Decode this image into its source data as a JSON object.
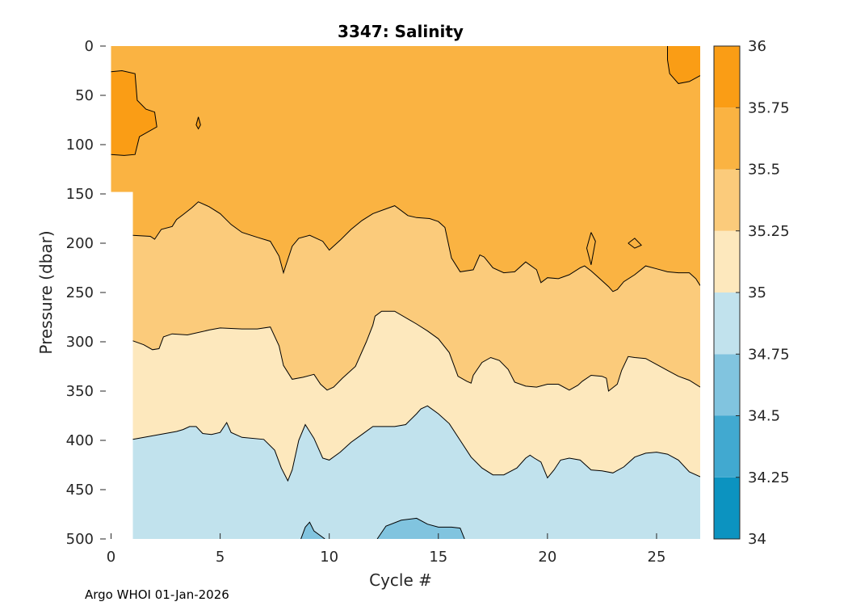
{
  "chart_data": {
    "type": "contour",
    "title": "3347:  Salinity",
    "xlabel": "Cycle #",
    "ylabel": "Pressure (dbar)",
    "xlim": [
      -0.5,
      27
    ],
    "ylim": [
      500,
      0
    ],
    "xticks": [
      0,
      5,
      10,
      15,
      20,
      25
    ],
    "yticks": [
      0,
      50,
      100,
      150,
      200,
      250,
      300,
      350,
      400,
      450,
      500
    ],
    "footer": "Argo WHOI 01-Jan-2026",
    "colorbar": {
      "range": [
        34,
        36
      ],
      "ticks": [
        "34",
        "34.25",
        "34.5",
        "34.75",
        "35",
        "35.25",
        "35.5",
        "35.75",
        "36"
      ],
      "bands": [
        {
          "low": 34.0,
          "high": 34.25,
          "color": "#0c93c0"
        },
        {
          "low": 34.25,
          "high": 34.5,
          "color": "#41a9d0"
        },
        {
          "low": 34.5,
          "high": 34.75,
          "color": "#81c4df"
        },
        {
          "low": 34.75,
          "high": 35.0,
          "color": "#c1e2ed"
        },
        {
          "low": 35.0,
          "high": 35.25,
          "color": "#fde8bd"
        },
        {
          "low": 35.25,
          "high": 35.5,
          "color": "#fbcb7b"
        },
        {
          "low": 35.5,
          "high": 35.75,
          "color": "#fab342"
        },
        {
          "low": 35.75,
          "high": 36.0,
          "color": "#fa9d15"
        }
      ]
    },
    "contours": [
      {
        "level": 35.0,
        "name": "contour-35-00",
        "points": [
          [
            1,
            399
          ],
          [
            2,
            395
          ],
          [
            3,
            391
          ],
          [
            3.3,
            389
          ],
          [
            3.6,
            386
          ],
          [
            3.9,
            386
          ],
          [
            4.2,
            393
          ],
          [
            4.6,
            394
          ],
          [
            5,
            392
          ],
          [
            5.3,
            382
          ],
          [
            5.5,
            392
          ],
          [
            6,
            397
          ],
          [
            7,
            399
          ],
          [
            7.5,
            410
          ],
          [
            7.8,
            428
          ],
          [
            8.1,
            441
          ],
          [
            8.3,
            430
          ],
          [
            8.6,
            400
          ],
          [
            8.9,
            384
          ],
          [
            9.3,
            398
          ],
          [
            9.7,
            418
          ],
          [
            10,
            420
          ],
          [
            10.5,
            412
          ],
          [
            11,
            402
          ],
          [
            11.5,
            394
          ],
          [
            12,
            386
          ],
          [
            13,
            386
          ],
          [
            13.5,
            384
          ],
          [
            14,
            373
          ],
          [
            14.2,
            368
          ],
          [
            14.5,
            365
          ],
          [
            15,
            373
          ],
          [
            15.5,
            383
          ],
          [
            16,
            400
          ],
          [
            16.5,
            417
          ],
          [
            17,
            428
          ],
          [
            17.5,
            435
          ],
          [
            18,
            435
          ],
          [
            18.6,
            428
          ],
          [
            19,
            418
          ],
          [
            19.2,
            415
          ],
          [
            19.4,
            418
          ],
          [
            19.7,
            422
          ],
          [
            20,
            438
          ],
          [
            20.3,
            430
          ],
          [
            20.6,
            420
          ],
          [
            21,
            418
          ],
          [
            21.5,
            420
          ],
          [
            22,
            430
          ],
          [
            22.5,
            431
          ],
          [
            23,
            433
          ],
          [
            23.5,
            427
          ],
          [
            24,
            417
          ],
          [
            24.5,
            413
          ],
          [
            25,
            412
          ],
          [
            25.5,
            414
          ],
          [
            26,
            420
          ],
          [
            26.5,
            432
          ],
          [
            27,
            437
          ]
        ]
      },
      {
        "level": 35.25,
        "name": "contour-35-25",
        "points": [
          [
            1,
            299
          ],
          [
            1.5,
            303
          ],
          [
            1.9,
            308
          ],
          [
            2.2,
            307
          ],
          [
            2.4,
            295
          ],
          [
            2.8,
            292
          ],
          [
            3.5,
            293
          ],
          [
            4.5,
            288
          ],
          [
            5,
            286
          ],
          [
            6,
            287
          ],
          [
            6.7,
            287
          ],
          [
            7.3,
            285
          ],
          [
            7.7,
            304
          ],
          [
            7.9,
            324
          ],
          [
            8.3,
            338
          ],
          [
            8.8,
            336
          ],
          [
            9.3,
            333
          ],
          [
            9.6,
            343
          ],
          [
            9.9,
            349
          ],
          [
            10.2,
            346
          ],
          [
            10.6,
            337
          ],
          [
            11.2,
            325
          ],
          [
            11.7,
            300
          ],
          [
            12,
            283
          ],
          [
            12.1,
            274
          ],
          [
            12.4,
            269
          ],
          [
            13,
            269
          ],
          [
            14,
            282
          ],
          [
            14.5,
            289
          ],
          [
            15,
            297
          ],
          [
            15.5,
            311
          ],
          [
            15.9,
            335
          ],
          [
            16.3,
            340
          ],
          [
            16.5,
            342
          ],
          [
            16.6,
            334
          ],
          [
            17,
            321
          ],
          [
            17.4,
            316
          ],
          [
            17.8,
            319
          ],
          [
            18.2,
            328
          ],
          [
            18.5,
            341
          ],
          [
            19,
            345
          ],
          [
            19.5,
            346
          ],
          [
            20,
            343
          ],
          [
            20.5,
            343
          ],
          [
            21,
            349
          ],
          [
            21.4,
            344
          ],
          [
            21.6,
            340
          ],
          [
            22,
            334
          ],
          [
            22.5,
            335
          ],
          [
            22.7,
            337
          ],
          [
            22.8,
            350
          ],
          [
            23.2,
            343
          ],
          [
            23.4,
            329
          ],
          [
            23.7,
            315
          ],
          [
            24,
            316
          ],
          [
            24.5,
            317
          ],
          [
            25,
            323
          ],
          [
            25.5,
            329
          ],
          [
            26,
            335
          ],
          [
            26.5,
            339
          ],
          [
            27,
            346
          ]
        ]
      },
      {
        "level": 35.5,
        "name": "contour-35-50",
        "points": [
          [
            1,
            192
          ],
          [
            1.8,
            193
          ],
          [
            2,
            196
          ],
          [
            2.3,
            186
          ],
          [
            2.8,
            183
          ],
          [
            3,
            176
          ],
          [
            3.3,
            171
          ],
          [
            3.7,
            164
          ],
          [
            4,
            158
          ],
          [
            4.5,
            163
          ],
          [
            5,
            170
          ],
          [
            5.5,
            181
          ],
          [
            6,
            189
          ],
          [
            6.7,
            194
          ],
          [
            7.3,
            198
          ],
          [
            7.7,
            213
          ],
          [
            7.9,
            230
          ],
          [
            8,
            223
          ],
          [
            8.3,
            203
          ],
          [
            8.6,
            195
          ],
          [
            9.1,
            192
          ],
          [
            9.7,
            198
          ],
          [
            10,
            207
          ],
          [
            10.5,
            197
          ],
          [
            11,
            186
          ],
          [
            11.5,
            177
          ],
          [
            12,
            170
          ],
          [
            12.5,
            166
          ],
          [
            13,
            162
          ],
          [
            13.6,
            172
          ],
          [
            14,
            174
          ],
          [
            14.6,
            175
          ],
          [
            15,
            178
          ],
          [
            15.3,
            184
          ],
          [
            15.6,
            215
          ],
          [
            16,
            229
          ],
          [
            16.6,
            227
          ],
          [
            16.9,
            212
          ],
          [
            17.1,
            214
          ],
          [
            17.5,
            225
          ],
          [
            18,
            230
          ],
          [
            18.5,
            229
          ],
          [
            19,
            219
          ],
          [
            19.5,
            227
          ],
          [
            19.7,
            240
          ],
          [
            20,
            235
          ],
          [
            20.5,
            236
          ],
          [
            21,
            232
          ],
          [
            21.5,
            225
          ],
          [
            21.7,
            223
          ],
          [
            22,
            228
          ],
          [
            22.3,
            234
          ],
          [
            22.8,
            244
          ],
          [
            23,
            249
          ],
          [
            23.2,
            247
          ],
          [
            23.5,
            239
          ],
          [
            24,
            232
          ],
          [
            24.5,
            223
          ],
          [
            25,
            226
          ],
          [
            25.5,
            229
          ],
          [
            26,
            230
          ],
          [
            26.5,
            230
          ],
          [
            26.8,
            236
          ],
          [
            27,
            243
          ]
        ]
      },
      {
        "level": 35.75,
        "name": "contour-35-75-upper-left",
        "points": [
          [
            0,
            26
          ],
          [
            0.5,
            25
          ],
          [
            1.1,
            28
          ],
          [
            1.2,
            55
          ],
          [
            1.6,
            64
          ],
          [
            2,
            67
          ],
          [
            2.1,
            82
          ],
          [
            1.3,
            92
          ],
          [
            1.1,
            110
          ],
          [
            0.6,
            111
          ],
          [
            0,
            110
          ]
        ]
      },
      {
        "level": 35.75,
        "name": "contour-35-75-small-island",
        "points": [
          [
            4.0,
            72
          ],
          [
            4.1,
            80
          ],
          [
            4.0,
            84
          ],
          [
            3.9,
            80
          ],
          [
            4.0,
            72
          ]
        ]
      },
      {
        "level": 35.75,
        "name": "contour-35-75-upper-right",
        "points": [
          [
            25.5,
            0
          ],
          [
            25.5,
            14
          ],
          [
            25.6,
            28
          ],
          [
            26,
            38
          ],
          [
            26.5,
            36
          ],
          [
            27,
            30
          ]
        ]
      },
      {
        "level": 35.5,
        "name": "contour-35-50-island-22",
        "points": [
          [
            22.0,
            189
          ],
          [
            22.2,
            198
          ],
          [
            22.0,
            222
          ],
          [
            21.8,
            205
          ],
          [
            22.0,
            189
          ]
        ]
      },
      {
        "level": 35.5,
        "name": "contour-35-50-island-24",
        "points": [
          [
            23.7,
            200
          ],
          [
            24.0,
            195
          ],
          [
            24.3,
            202
          ],
          [
            24.0,
            205
          ],
          [
            23.7,
            200
          ]
        ]
      },
      {
        "level": 34.75,
        "name": "contour-34-75-bump-9",
        "points": [
          [
            8.7,
            500
          ],
          [
            8.9,
            488
          ],
          [
            9.1,
            483
          ],
          [
            9.3,
            492
          ],
          [
            9.8,
            500
          ]
        ]
      },
      {
        "level": 34.75,
        "name": "contour-34-75-bump-14",
        "points": [
          [
            12.2,
            500
          ],
          [
            12.6,
            487
          ],
          [
            13.3,
            481
          ],
          [
            14,
            479
          ],
          [
            14.5,
            485
          ],
          [
            15,
            488
          ],
          [
            15.6,
            488
          ],
          [
            16,
            489
          ],
          [
            16.2,
            500
          ]
        ]
      }
    ]
  }
}
